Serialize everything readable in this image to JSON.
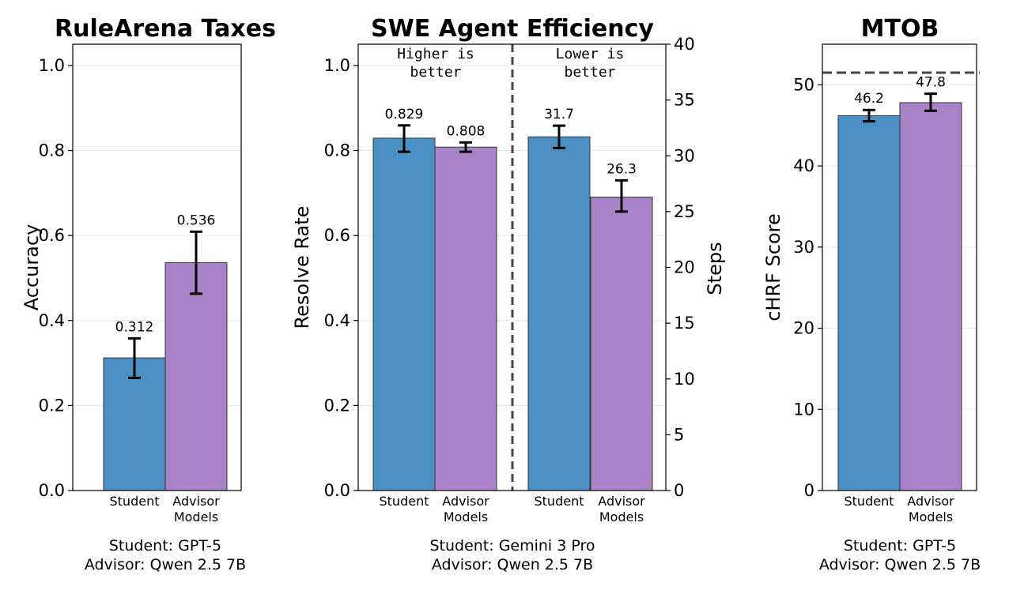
{
  "colors": {
    "student": "#4a90c4",
    "advisor": "#a983c8",
    "grid": "#e6e6e6",
    "ref_line": "#444444"
  },
  "chart_data": [
    {
      "id": "rulearena",
      "type": "bar",
      "title": "RuleArena Taxes",
      "ylabel": "Accuracy",
      "ylim": [
        0,
        1.05
      ],
      "yticks": [
        0.0,
        0.2,
        0.4,
        0.6,
        0.8,
        1.0
      ],
      "ytick_labels": [
        "0.0",
        "0.2",
        "0.4",
        "0.6",
        "0.8",
        "1.0"
      ],
      "grid": true,
      "bars": [
        {
          "category": [
            "Student"
          ],
          "value": 0.312,
          "label": "0.312",
          "err": [
            0.265,
            0.358
          ],
          "color_key": "student"
        },
        {
          "category": [
            "Advisor",
            "Models"
          ],
          "value": 0.536,
          "label": "0.536",
          "err": [
            0.463,
            0.609
          ],
          "color_key": "advisor"
        }
      ],
      "footnote": [
        "Student: GPT-5",
        "Advisor: Qwen 2.5 7B"
      ]
    },
    {
      "id": "swe",
      "type": "bar",
      "title": "SWE Agent Efficiency",
      "ylabel": "Resolve Rate",
      "ylim": [
        0,
        1.05
      ],
      "yticks": [
        0.0,
        0.2,
        0.4,
        0.6,
        0.8,
        1.0
      ],
      "ytick_labels": [
        "0.0",
        "0.2",
        "0.4",
        "0.6",
        "0.8",
        "1.0"
      ],
      "y2label": "Steps",
      "y2lim": [
        0,
        40
      ],
      "y2ticks": [
        0,
        5,
        10,
        15,
        20,
        25,
        30,
        35,
        40
      ],
      "y2tick_labels": [
        "0",
        "5",
        "10",
        "15",
        "20",
        "25",
        "30",
        "35",
        "40"
      ],
      "grid": true,
      "notes": [
        [
          "Higher is",
          "better"
        ],
        [
          "Lower is",
          "better"
        ]
      ],
      "bars": [
        {
          "category": [
            "Student"
          ],
          "value": 0.829,
          "label": "0.829",
          "err": [
            0.797,
            0.859
          ],
          "color_key": "student",
          "axis": "left"
        },
        {
          "category": [
            "Advisor",
            "Models"
          ],
          "value": 0.808,
          "label": "0.808",
          "err": [
            0.797,
            0.819
          ],
          "color_key": "advisor",
          "axis": "left"
        },
        {
          "category": [
            "Student"
          ],
          "value": 31.7,
          "label": "31.7",
          "err": [
            30.7,
            32.7
          ],
          "color_key": "student",
          "axis": "right"
        },
        {
          "category": [
            "Advisor",
            "Models"
          ],
          "value": 26.3,
          "label": "26.3",
          "err": [
            25.0,
            27.8
          ],
          "color_key": "advisor",
          "axis": "right"
        }
      ],
      "footnote": [
        "Student: Gemini 3 Pro",
        "Advisor: Qwen 2.5 7B"
      ]
    },
    {
      "id": "mtob",
      "type": "bar",
      "title": "MTOB",
      "ylabel": "cHRF Score",
      "ylim": [
        0,
        55
      ],
      "yticks": [
        0,
        10,
        20,
        30,
        40,
        50
      ],
      "ytick_labels": [
        "0",
        "10",
        "20",
        "30",
        "40",
        "50"
      ],
      "grid": true,
      "reference_line": 51.5,
      "bars": [
        {
          "category": [
            "Student"
          ],
          "value": 46.2,
          "label": "46.2",
          "err": [
            45.5,
            46.9
          ],
          "color_key": "student"
        },
        {
          "category": [
            "Advisor",
            "Models"
          ],
          "value": 47.8,
          "label": "47.8",
          "err": [
            46.8,
            48.9
          ],
          "color_key": "advisor"
        }
      ],
      "footnote": [
        "Student: GPT-5",
        "Advisor: Qwen 2.5 7B"
      ]
    }
  ]
}
